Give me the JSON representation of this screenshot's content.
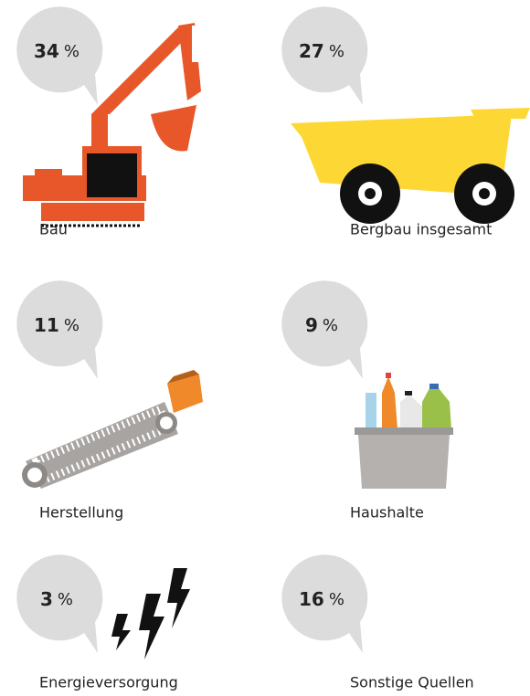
{
  "items": [
    {
      "value": 34,
      "unit": "%",
      "label": "Bau"
    },
    {
      "value": 27,
      "unit": "%",
      "label": "Bergbau insgesamt"
    },
    {
      "value": 11,
      "unit": "%",
      "label": "Herstellung"
    },
    {
      "value": 9,
      "unit": "%",
      "label": "Haushalte"
    },
    {
      "value": 3,
      "unit": "%",
      "label": "Energieversorgung"
    },
    {
      "value": 16,
      "unit": "%",
      "label": "Sonstige Quellen"
    }
  ]
}
